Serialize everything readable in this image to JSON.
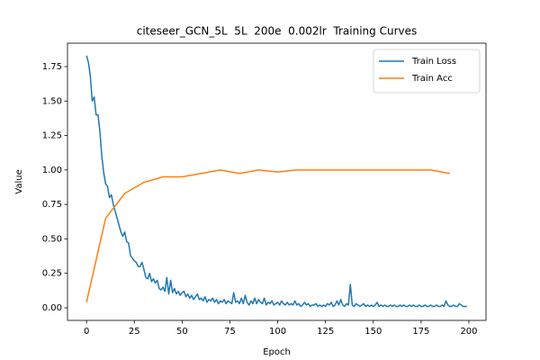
{
  "chart_data": {
    "type": "line",
    "title": "citeseer_GCN_5L  5L  200e  0.002lr  Training Curves",
    "x_label": "Epoch",
    "y_label": "Value",
    "xlim": [
      -9.95,
      208.95
    ],
    "ylim": [
      -0.0914,
      1.92
    ],
    "xticks": [
      0,
      25,
      50,
      75,
      100,
      125,
      150,
      175,
      200
    ],
    "yticks": [
      {
        "value": 0,
        "label": "0.00"
      },
      {
        "value": 0.25,
        "label": "0.25"
      },
      {
        "value": 0.5,
        "label": "0.50"
      },
      {
        "value": 0.75,
        "label": "0.75"
      },
      {
        "value": 1,
        "label": "1.00"
      },
      {
        "value": 1.25,
        "label": "1.25"
      },
      {
        "value": 1.5,
        "label": "1.50"
      },
      {
        "value": 1.75,
        "label": "1.75"
      }
    ],
    "grid": false,
    "legend": "upper right",
    "series": [
      {
        "name": "Train Loss",
        "color": "#1f77b4",
        "x": [
          0,
          1,
          2,
          3,
          4,
          5,
          6,
          7,
          8,
          9,
          10,
          11,
          12,
          13,
          14,
          15,
          16,
          17,
          18,
          19,
          20,
          21,
          22,
          23,
          24,
          25,
          26,
          27,
          28,
          29,
          30,
          31,
          32,
          33,
          34,
          35,
          36,
          37,
          38,
          39,
          40,
          41,
          42,
          43,
          44,
          45,
          46,
          47,
          48,
          49,
          50,
          51,
          52,
          53,
          54,
          55,
          56,
          57,
          58,
          59,
          60,
          61,
          62,
          63,
          64,
          65,
          66,
          67,
          68,
          69,
          70,
          71,
          72,
          73,
          74,
          75,
          76,
          77,
          78,
          79,
          80,
          81,
          82,
          83,
          84,
          85,
          86,
          87,
          88,
          89,
          90,
          91,
          92,
          93,
          94,
          95,
          96,
          97,
          98,
          99,
          100,
          101,
          102,
          103,
          104,
          105,
          106,
          107,
          108,
          109,
          110,
          111,
          112,
          113,
          114,
          115,
          116,
          117,
          118,
          119,
          120,
          121,
          122,
          123,
          124,
          125,
          126,
          127,
          128,
          129,
          130,
          131,
          132,
          133,
          134,
          135,
          136,
          137,
          138,
          139,
          140,
          141,
          142,
          143,
          144,
          145,
          146,
          147,
          148,
          149,
          150,
          151,
          152,
          153,
          154,
          155,
          156,
          157,
          158,
          159,
          160,
          161,
          162,
          163,
          164,
          165,
          166,
          167,
          168,
          169,
          170,
          171,
          172,
          173,
          174,
          175,
          176,
          177,
          178,
          179,
          180,
          181,
          182,
          183,
          184,
          185,
          186,
          187,
          188,
          189,
          190,
          191,
          192,
          193,
          194,
          195,
          196,
          197,
          198,
          199
        ],
        "values": [
          1.83,
          1.78,
          1.68,
          1.5,
          1.53,
          1.4,
          1.4,
          1.28,
          1.1,
          0.98,
          0.9,
          0.88,
          0.8,
          0.82,
          0.75,
          0.7,
          0.65,
          0.6,
          0.55,
          0.52,
          0.55,
          0.48,
          0.47,
          0.38,
          0.36,
          0.34,
          0.33,
          0.3,
          0.3,
          0.33,
          0.28,
          0.22,
          0.21,
          0.25,
          0.19,
          0.21,
          0.18,
          0.2,
          0.14,
          0.13,
          0.15,
          0.12,
          0.22,
          0.1,
          0.2,
          0.11,
          0.14,
          0.1,
          0.12,
          0.09,
          0.11,
          0.12,
          0.08,
          0.1,
          0.07,
          0.09,
          0.06,
          0.08,
          0.1,
          0.06,
          0.07,
          0.05,
          0.08,
          0.04,
          0.06,
          0.05,
          0.07,
          0.04,
          0.06,
          0.03,
          0.05,
          0.04,
          0.06,
          0.03,
          0.05,
          0.04,
          0.03,
          0.11,
          0.04,
          0.05,
          0.03,
          0.07,
          0.03,
          0.09,
          0.04,
          0.02,
          0.05,
          0.03,
          0.07,
          0.03,
          0.06,
          0.04,
          0.03,
          0.07,
          0.02,
          0.04,
          0.03,
          0.05,
          0.02,
          0.03,
          0.04,
          0.02,
          0.05,
          0.03,
          0.02,
          0.04,
          0.02,
          0.03,
          0.02,
          0.05,
          0.02,
          0.03,
          0.01,
          0.02,
          0.04,
          0.02,
          0.03,
          0.01,
          0.02,
          0.02,
          0.03,
          0.01,
          0.02,
          0.01,
          0.02,
          0.01,
          0.03,
          0.02,
          0.04,
          0.01,
          0.02,
          0.05,
          0.02,
          0.06,
          0.02,
          0.01,
          0.03,
          0.02,
          0.17,
          0.02,
          0.01,
          0.03,
          0.02,
          0.01,
          0.02,
          0.03,
          0.01,
          0.02,
          0.01,
          0.02,
          0.01,
          0.02,
          0.04,
          0.01,
          0.02,
          0.01,
          0.02,
          0.01,
          0.01,
          0.02,
          0.01,
          0.02,
          0.01,
          0.01,
          0.02,
          0.01,
          0.02,
          0.01,
          0.01,
          0.02,
          0.01,
          0.02,
          0.01,
          0.01,
          0.02,
          0.01,
          0.01,
          0.02,
          0.01,
          0.01,
          0.02,
          0.01,
          0.01,
          0.02,
          0.01,
          0.01,
          0.02,
          0.01,
          0.05,
          0.02,
          0.01,
          0.01,
          0.02,
          0.01,
          0.01,
          0.03,
          0.02,
          0.01,
          0.01,
          0.01
        ]
      },
      {
        "name": "Train Acc",
        "color": "#ff7f0e",
        "x": [
          0,
          10,
          20,
          30,
          40,
          50,
          60,
          70,
          80,
          90,
          100,
          110,
          120,
          130,
          140,
          150,
          160,
          170,
          180,
          190
        ],
        "values": [
          0.04,
          0.65,
          0.83,
          0.91,
          0.95,
          0.95,
          0.975,
          1.0,
          0.975,
          1.0,
          0.985,
          1.0,
          1.0,
          1.0,
          1.0,
          1.0,
          1.0,
          1.0,
          1.0,
          0.975
        ]
      }
    ]
  }
}
